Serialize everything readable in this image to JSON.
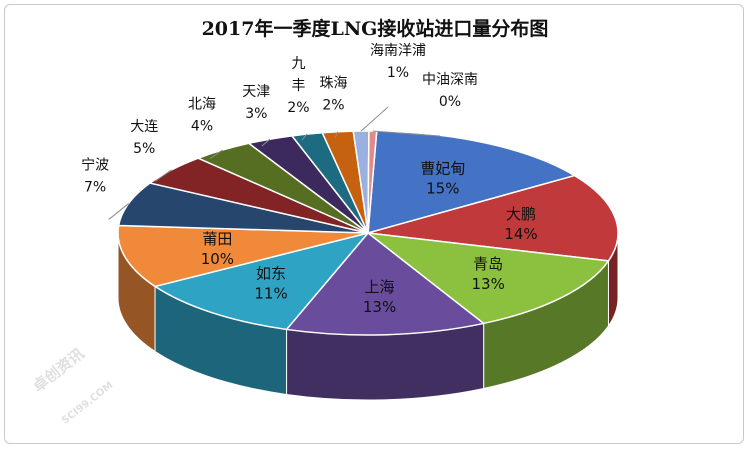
{
  "chart_data": {
    "type": "pie",
    "title": "2017年一季度LNG接收站进口量分布图",
    "slices": [
      {
        "label": "曹妃甸",
        "value_label": "15%",
        "value": 15,
        "color": "#4472C4"
      },
      {
        "label": "大鹏",
        "value_label": "14%",
        "value": 14,
        "color": "#C0393B"
      },
      {
        "label": "青岛",
        "value_label": "13%",
        "value": 13,
        "color": "#8CC13F"
      },
      {
        "label": "上海",
        "value_label": "13%",
        "value": 13,
        "color": "#6A4C9C"
      },
      {
        "label": "如东",
        "value_label": "11%",
        "value": 11,
        "color": "#2FA3C4"
      },
      {
        "label": "莆田",
        "value_label": "10%",
        "value": 10,
        "color": "#F0893A"
      },
      {
        "label": "宁波",
        "value_label": "7%",
        "value": 7,
        "color": "#27466E"
      },
      {
        "label": "大连",
        "value_label": "5%",
        "value": 5,
        "color": "#822325"
      },
      {
        "label": "北海",
        "value_label": "4%",
        "value": 4,
        "color": "#566E22"
      },
      {
        "label": "天津",
        "value_label": "3%",
        "value": 3,
        "color": "#3C2A5E"
      },
      {
        "label": "九丰",
        "value_label": "2%",
        "value": 2,
        "color": "#1C6B80"
      },
      {
        "label": "珠海",
        "value_label": "2%",
        "value": 2,
        "color": "#C6620F"
      },
      {
        "label": "海南洋浦",
        "value_label": "1%",
        "value": 1,
        "color": "#9AB0DE"
      },
      {
        "label": "中油深南",
        "value_label": "0%",
        "value": 0.5,
        "color": "#E08A8A"
      }
    ]
  },
  "watermark": {
    "text": "卓创资讯",
    "url": "SCI99.COM"
  }
}
